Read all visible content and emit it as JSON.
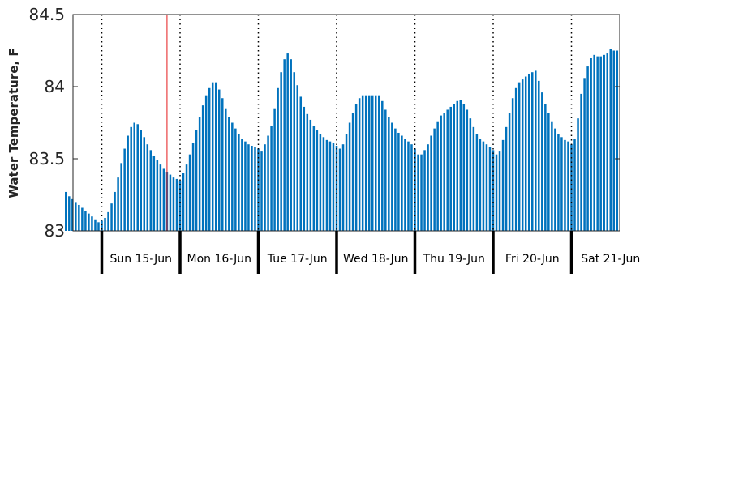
{
  "colors": {
    "bar": "#0072BD",
    "marker": "#e41a1c",
    "axis": "#262626"
  },
  "chart_data": {
    "type": "bar",
    "ylabel": "Water Temperature, F",
    "ylim": [
      83,
      84.5
    ],
    "yticks": [
      {
        "value": 83,
        "label": "83"
      },
      {
        "value": 83.5,
        "label": "83.5"
      },
      {
        "value": 84,
        "label": "84"
      },
      {
        "value": 84.5,
        "label": "84.5"
      }
    ],
    "days": [
      "Sun 15-Jun",
      "Mon 16-Jun",
      "Tue 17-Jun",
      "Wed 18-Jun",
      "Thu 19-Jun",
      "Fri 20-Jun",
      "Sat 21-Jun"
    ],
    "grid": "vertical dotted at day boundaries",
    "current_marker_index": 31,
    "values": [
      83.27,
      83.24,
      83.22,
      83.2,
      83.18,
      83.16,
      83.14,
      83.12,
      83.1,
      83.08,
      83.06,
      83.07,
      83.09,
      83.13,
      83.19,
      83.27,
      83.37,
      83.47,
      83.57,
      83.66,
      83.72,
      83.75,
      83.74,
      83.7,
      83.65,
      83.6,
      83.56,
      83.52,
      83.49,
      83.46,
      83.43,
      83.41,
      83.39,
      83.37,
      83.36,
      83.35,
      83.4,
      83.46,
      83.53,
      83.61,
      83.7,
      83.79,
      83.87,
      83.94,
      83.99,
      84.03,
      84.03,
      83.98,
      83.92,
      83.85,
      83.79,
      83.75,
      83.71,
      83.67,
      83.64,
      83.62,
      83.6,
      83.59,
      83.58,
      83.57,
      83.55,
      83.6,
      83.66,
      83.73,
      83.85,
      83.99,
      84.1,
      84.19,
      84.23,
      84.19,
      84.1,
      84.01,
      83.93,
      83.86,
      83.81,
      83.77,
      83.73,
      83.7,
      83.67,
      83.65,
      83.63,
      83.62,
      83.61,
      83.59,
      83.57,
      83.6,
      83.67,
      83.75,
      83.82,
      83.88,
      83.92,
      83.94,
      83.94,
      83.94,
      83.94,
      83.94,
      83.94,
      83.9,
      83.84,
      83.79,
      83.75,
      83.71,
      83.68,
      83.66,
      83.64,
      83.62,
      83.6,
      83.57,
      83.53,
      83.53,
      83.56,
      83.6,
      83.66,
      83.71,
      83.76,
      83.8,
      83.82,
      83.84,
      83.86,
      83.88,
      83.9,
      83.91,
      83.88,
      83.84,
      83.78,
      83.72,
      83.67,
      83.64,
      83.62,
      83.6,
      83.58,
      83.56,
      83.53,
      83.55,
      83.63,
      83.72,
      83.82,
      83.92,
      83.99,
      84.03,
      84.05,
      84.07,
      84.09,
      84.1,
      84.11,
      84.04,
      83.96,
      83.88,
      83.82,
      83.76,
      83.71,
      83.67,
      83.65,
      83.63,
      83.62,
      83.6,
      83.64,
      83.78,
      83.95,
      84.06,
      84.14,
      84.2,
      84.22,
      84.21,
      84.21,
      84.22,
      84.23,
      84.26,
      84.25,
      84.25
    ]
  }
}
